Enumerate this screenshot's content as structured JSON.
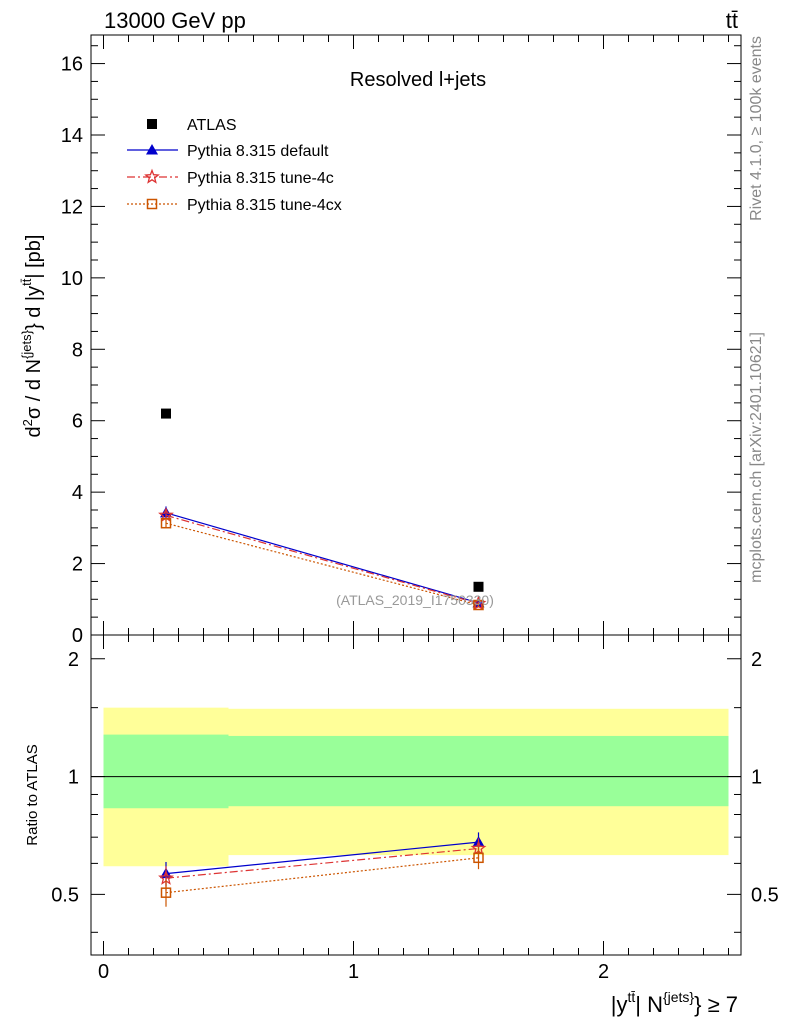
{
  "header": {
    "energy_label": "13000 GeV pp",
    "process_label": "tt̄",
    "plot_title": "Resolved l+jets",
    "analysis_id": "(ATLAS_2019_I1750330)",
    "side_text_rivet": "Rivet 4.1.0, ≥ 100k events",
    "side_text_source": "mcplots.cern.ch [arXiv:2401.10621]"
  },
  "legend": {
    "entries": [
      {
        "label": "ATLAS",
        "color": "#000000",
        "marker": "square"
      },
      {
        "label": "Pythia 8.315 default",
        "color": "#0000cc",
        "marker": "triangle"
      },
      {
        "label": "Pythia 8.315 tune-4c",
        "color": "#dd3333",
        "marker": "star"
      },
      {
        "label": "Pythia 8.315 tune-4cx",
        "color": "#cc5500",
        "marker": "open-square"
      }
    ]
  },
  "chart_data": [
    {
      "type": "scatter",
      "panel": "main",
      "ylabel": "d²σ / d N^{jets} d |y^{tt̄}| [pb]",
      "xlim": [
        -0.05,
        2.55
      ],
      "ylim": [
        0,
        16.8
      ],
      "yticks": [
        0,
        2,
        4,
        6,
        8,
        10,
        12,
        14,
        16
      ],
      "x": [
        0.25,
        1.5
      ],
      "series": [
        {
          "name": "ATLAS",
          "values": [
            6.2,
            1.35
          ],
          "errors": [
            0,
            0
          ]
        },
        {
          "name": "Pythia 8.315 default",
          "values": [
            3.42,
            0.9
          ],
          "errors": [
            0.18,
            0.05
          ]
        },
        {
          "name": "Pythia 8.315 tune-4c",
          "values": [
            3.35,
            0.88
          ],
          "errors": [
            0.15,
            0.05
          ]
        },
        {
          "name": "Pythia 8.315 tune-4cx",
          "values": [
            3.13,
            0.84
          ],
          "errors": [
            0.12,
            0.05
          ]
        }
      ]
    },
    {
      "type": "line",
      "panel": "ratio",
      "ylabel": "Ratio to ATLAS",
      "xlabel": "|y^{tt̄}| N^{jets} ≥ 7",
      "xlim": [
        -0.05,
        2.55
      ],
      "ylim": [
        0.35,
        2.3
      ],
      "yticks": [
        0.5,
        1,
        2
      ],
      "xticks": [
        0,
        1,
        2
      ],
      "reference": 1,
      "bands": {
        "bins": [
          [
            0,
            0.5
          ],
          [
            0.5,
            2.5
          ]
        ],
        "stat_sys_outer": [
          [
            0.59,
            1.5
          ],
          [
            0.63,
            1.49
          ]
        ],
        "stat_inner": [
          [
            0.83,
            1.28
          ],
          [
            0.84,
            1.27
          ]
        ],
        "outer_color": "#ffff99",
        "inner_color": "#99ff99"
      },
      "x": [
        0.25,
        1.5
      ],
      "series": [
        {
          "name": "Pythia 8.315 default",
          "values": [
            0.565,
            0.68
          ],
          "errors": [
            0.04,
            0.04
          ]
        },
        {
          "name": "Pythia 8.315 tune-4c",
          "values": [
            0.55,
            0.655
          ],
          "errors": [
            0.04,
            0.04
          ]
        },
        {
          "name": "Pythia 8.315 tune-4cx",
          "values": [
            0.505,
            0.62
          ],
          "errors": [
            0.04,
            0.04
          ]
        }
      ]
    }
  ]
}
